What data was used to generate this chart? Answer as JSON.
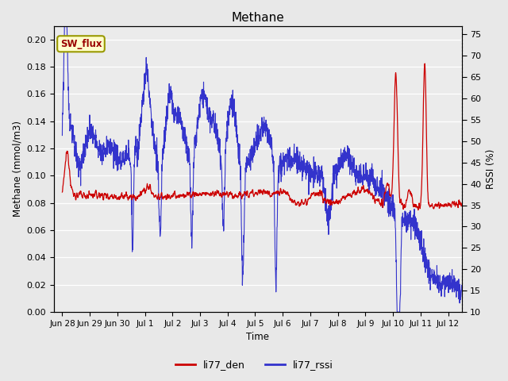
{
  "title": "Methane",
  "ylabel_left": "Methane (mmol/m3)",
  "ylabel_right": "RSSI (%)",
  "xlabel": "Time",
  "xlim_days": [
    -0.3,
    14.5
  ],
  "ylim_left": [
    0.0,
    0.21
  ],
  "ylim_right": [
    10,
    77
  ],
  "yticks_left": [
    0.0,
    0.02,
    0.04,
    0.06,
    0.08,
    0.1,
    0.12,
    0.14,
    0.16,
    0.18,
    0.2
  ],
  "yticks_right": [
    10,
    15,
    20,
    25,
    30,
    35,
    40,
    45,
    50,
    55,
    60,
    65,
    70,
    75
  ],
  "xtick_labels": [
    "Jun 28",
    "Jun 29",
    "Jun 30",
    "Jul 1",
    "Jul 2",
    "Jul 3",
    "Jul 4",
    "Jul 5",
    "Jul 6",
    "Jul 7",
    "Jul 8",
    "Jul 9",
    "Jul 10",
    "Jul 11",
    "Jul 12"
  ],
  "xtick_positions": [
    0,
    1,
    2,
    3,
    4,
    5,
    6,
    7,
    8,
    9,
    10,
    11,
    12,
    13,
    14
  ],
  "background_color": "#e8e8e8",
  "plot_bg_color": "#ebebeb",
  "grid_color": "#ffffff",
  "red_color": "#cc0000",
  "blue_color": "#3333cc",
  "sw_flux_box_color": "#ffffcc",
  "sw_flux_border_color": "#999900",
  "sw_flux_text_color": "#990000",
  "legend_red_color": "#cc0000",
  "legend_blue_color": "#3333cc"
}
